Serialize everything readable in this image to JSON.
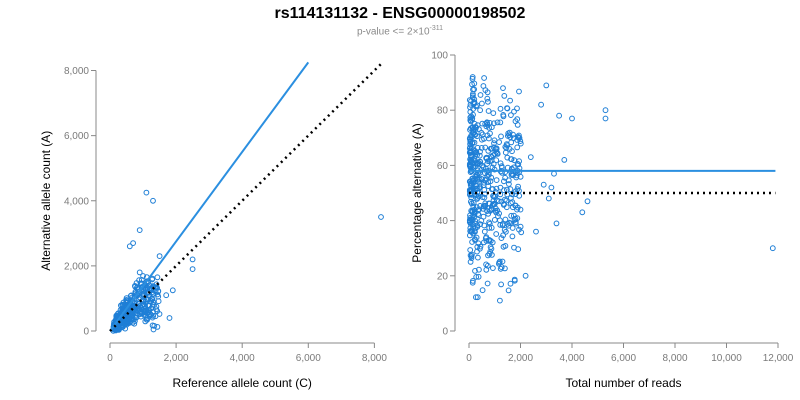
{
  "title": "rs114131132 - ENSG00000198502",
  "subtitle": {
    "prefix": "p-value <= 2×10",
    "exponent": "-311"
  },
  "colors": {
    "points": "#1f7fd6",
    "fit": "#2b8fe0",
    "reference": "#000000",
    "axis": "#888888",
    "tick_text": "#7a7a7a"
  },
  "chart_data": [
    {
      "type": "scatter",
      "title": "",
      "xlabel": "Reference allele count (C)",
      "ylabel": "Alternative allele count (A)",
      "xlim": [
        0,
        8200
      ],
      "ylim": [
        0,
        8200
      ],
      "xticks": [
        0,
        2000,
        4000,
        6000,
        8000
      ],
      "xtick_labels": [
        "0",
        "2,000",
        "4,000",
        "6,000",
        "8,000"
      ],
      "yticks": [
        0,
        2000,
        4000,
        6000,
        8000
      ],
      "ytick_labels": [
        "0",
        "2,000",
        "4,000",
        "6,000",
        "8,000"
      ],
      "fit_line": {
        "x": [
          0,
          6000
        ],
        "y": [
          0,
          8250
        ]
      },
      "reference_line": {
        "x": [
          0,
          8200
        ],
        "y": [
          0,
          8200
        ]
      },
      "highlight_points": [
        {
          "x": 1100,
          "y": 4250
        },
        {
          "x": 1300,
          "y": 4000
        },
        {
          "x": 8200,
          "y": 3500
        },
        {
          "x": 900,
          "y": 3100
        },
        {
          "x": 1500,
          "y": 2300
        },
        {
          "x": 2500,
          "y": 2200
        },
        {
          "x": 700,
          "y": 2700
        },
        {
          "x": 600,
          "y": 2600
        },
        {
          "x": 2500,
          "y": 1900
        },
        {
          "x": 1700,
          "y": 1100
        },
        {
          "x": 1900,
          "y": 1250
        },
        {
          "x": 1800,
          "y": 400
        },
        {
          "x": 1300,
          "y": 600
        },
        {
          "x": 1100,
          "y": 1500
        },
        {
          "x": 900,
          "y": 1800
        }
      ],
      "cluster": {
        "n": 420,
        "x_max": 1300,
        "y_max": 1700,
        "note": "dense cloud of points near origin"
      }
    },
    {
      "type": "scatter",
      "title": "",
      "xlabel": "Total number of reads",
      "ylabel": "Percentage alternative (A)",
      "xlim": [
        0,
        12000
      ],
      "ylim": [
        0,
        100
      ],
      "xticks": [
        0,
        2000,
        4000,
        6000,
        8000,
        10000,
        12000
      ],
      "xtick_labels": [
        "0",
        "2,000",
        "4,000",
        "6,000",
        "8,000",
        "10,000",
        "12,000"
      ],
      "yticks": [
        0,
        20,
        40,
        60,
        80,
        100
      ],
      "ytick_labels": [
        "0",
        "20",
        "40",
        "60",
        "80",
        "100"
      ],
      "fit_line": {
        "x": [
          0,
          11900
        ],
        "y": [
          58,
          58
        ]
      },
      "reference_line": {
        "x": [
          0,
          11900
        ],
        "y": [
          50,
          50
        ]
      },
      "highlight_points": [
        {
          "x": 11800,
          "y": 30
        },
        {
          "x": 5300,
          "y": 80
        },
        {
          "x": 5300,
          "y": 77
        },
        {
          "x": 4600,
          "y": 47
        },
        {
          "x": 4400,
          "y": 43
        },
        {
          "x": 4000,
          "y": 77
        },
        {
          "x": 3700,
          "y": 62
        },
        {
          "x": 3500,
          "y": 78
        },
        {
          "x": 3000,
          "y": 89
        },
        {
          "x": 2800,
          "y": 82
        },
        {
          "x": 3300,
          "y": 57
        },
        {
          "x": 3200,
          "y": 52
        },
        {
          "x": 2900,
          "y": 53
        },
        {
          "x": 2200,
          "y": 20
        },
        {
          "x": 3100,
          "y": 48
        },
        {
          "x": 2600,
          "y": 36
        },
        {
          "x": 2000,
          "y": 44
        },
        {
          "x": 1200,
          "y": 11
        },
        {
          "x": 2400,
          "y": 63
        },
        {
          "x": 3400,
          "y": 39
        }
      ],
      "cluster": {
        "n": 520,
        "x_max": 2000,
        "y_min": 12,
        "y_max": 95,
        "note": "dense vertical band at low read counts"
      }
    }
  ]
}
